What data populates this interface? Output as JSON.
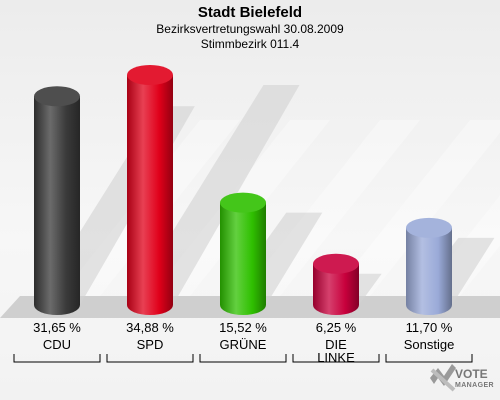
{
  "header": {
    "title": "Stadt Bielefeld",
    "subtitle": "Bezirksvertretungswahl 30.08.2009",
    "district": "Stimmbezirk 011.4"
  },
  "logo": {
    "icon": "vote-x-icon",
    "word": "VOTE",
    "sub": "MANAGER"
  },
  "chart_data": {
    "type": "bar",
    "categories": [
      "CDU",
      "SPD",
      "GRÜNE",
      "DIE LINKE",
      "Sonstige"
    ],
    "category_lines": [
      [
        "CDU"
      ],
      [
        "SPD"
      ],
      [
        "GRÜNE"
      ],
      [
        "DIE",
        "LINKE"
      ],
      [
        "Sonstige"
      ]
    ],
    "values": [
      31.65,
      34.88,
      15.52,
      6.25,
      11.7
    ],
    "value_labels": [
      "31,65 %",
      "34,88 %",
      "15,52 %",
      "6,25 %",
      "11,70 %"
    ],
    "colors": [
      "#3a3a3a",
      "#e0001a",
      "#2fc000",
      "#c8003c",
      "#9aaad8"
    ],
    "title": "Stadt Bielefeld",
    "xlabel": "",
    "ylabel": "",
    "ylim": [
      0,
      34.88
    ],
    "grid": false,
    "legend": "none"
  }
}
